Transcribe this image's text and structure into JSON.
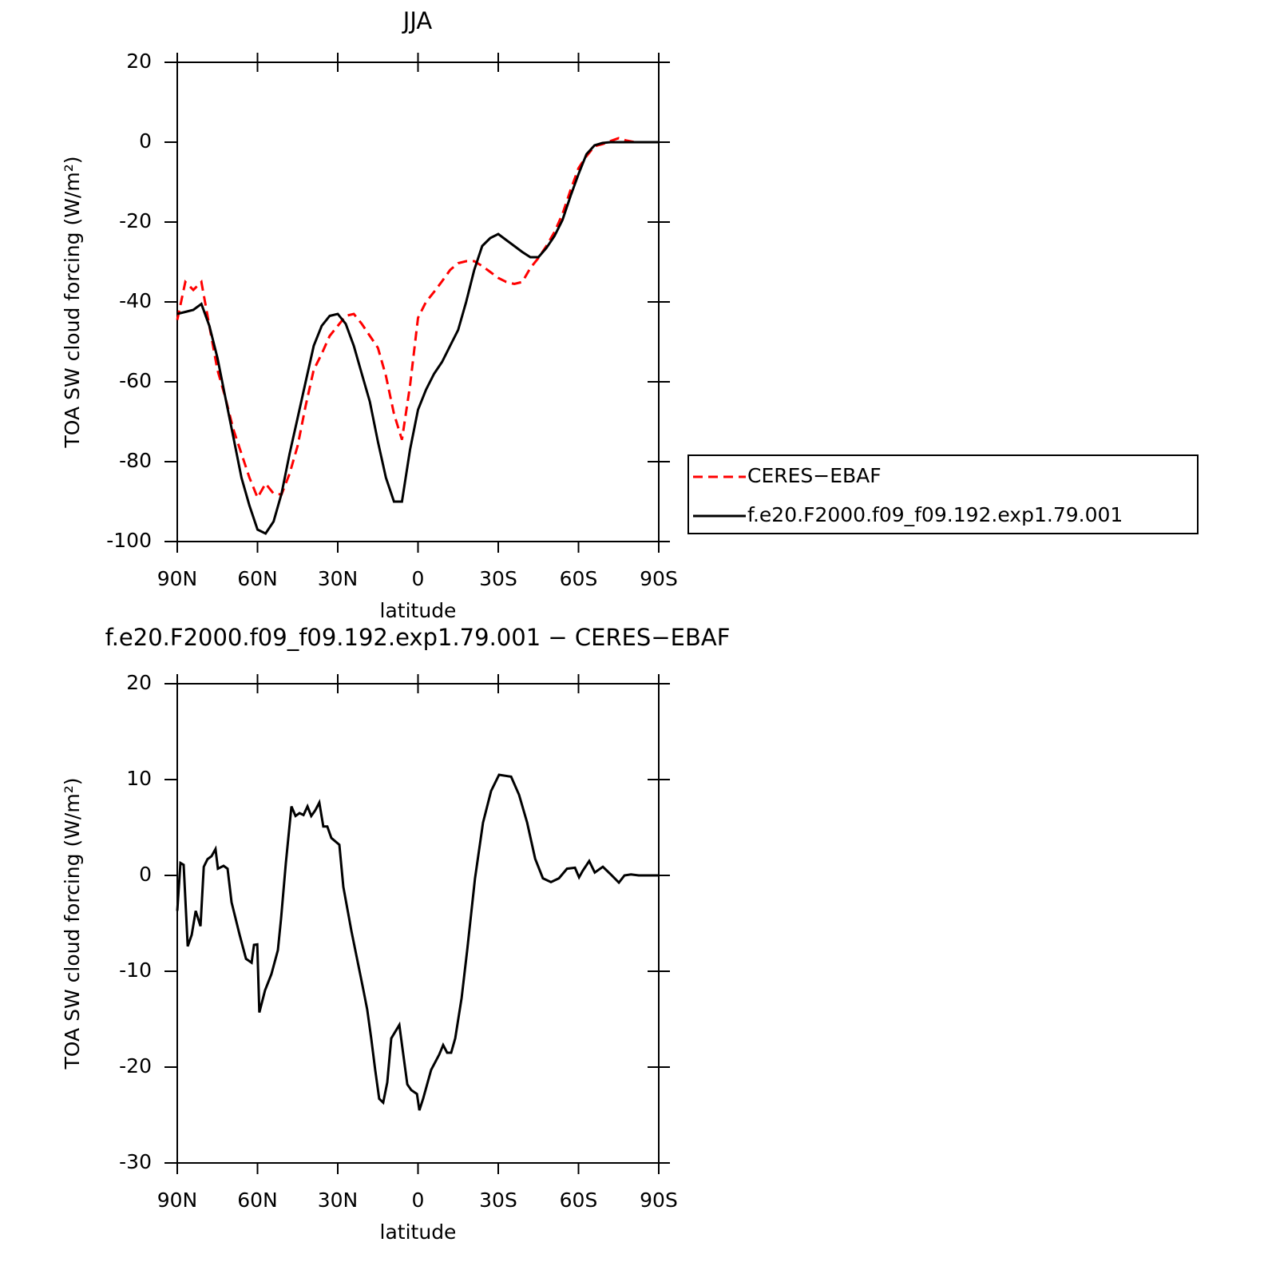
{
  "chart_data": [
    {
      "type": "line",
      "title": "JJA",
      "xlabel": "latitude",
      "ylabel": "TOA SW cloud forcing (W/m²)",
      "x": [
        90,
        87,
        84,
        81,
        78,
        75,
        72,
        69,
        66,
        63,
        60,
        57,
        54,
        51,
        48,
        45,
        42,
        39,
        36,
        33,
        30,
        27,
        24,
        21,
        18,
        15,
        12,
        9,
        6,
        3,
        0,
        -3,
        -6,
        -9,
        -12,
        -15,
        -18,
        -21,
        -24,
        -27,
        -30,
        -33,
        -36,
        -39,
        -42,
        -45,
        -48,
        -51,
        -54,
        -57,
        -60,
        -63,
        -66,
        -69,
        -72,
        -75,
        -78,
        -81,
        -84,
        -87,
        -90
      ],
      "series": [
        {
          "name": "CERES−EBAF",
          "color": "#ff0000",
          "line_style": "dashed",
          "values": [
            -44.5,
            -35,
            -37,
            -35,
            -46,
            -57,
            -64,
            -72,
            -78,
            -84,
            -89,
            -85.5,
            -88,
            -88.2,
            -83,
            -76,
            -66,
            -57,
            -53,
            -48.5,
            -46,
            -43.5,
            -43,
            -45.5,
            -48.5,
            -51.5,
            -58.5,
            -68,
            -74.5,
            -61,
            -44,
            -40,
            -37.5,
            -34.8,
            -32,
            -30.3,
            -29.8,
            -29.8,
            -31,
            -32.5,
            -34,
            -35,
            -35.5,
            -35,
            -31.5,
            -29,
            -26,
            -22.5,
            -18,
            -12,
            -6.5,
            -3.5,
            -1,
            -0.5,
            0.3,
            1,
            0.4,
            0,
            0,
            0,
            0
          ]
        },
        {
          "name": "f.e20.F2000.f09_f09.192.exp1.79.001",
          "color": "#000000",
          "line_style": "solid",
          "values": [
            -43,
            -42.5,
            -42,
            -40.5,
            -46,
            -54,
            -64,
            -74,
            -84,
            -91,
            -97,
            -98,
            -95,
            -88,
            -78,
            -69,
            -60,
            -51,
            -46,
            -43.5,
            -43,
            -45.5,
            -51,
            -58,
            -65,
            -75,
            -84,
            -90,
            -90,
            -77,
            -67,
            -62,
            -58,
            -55,
            -51,
            -47,
            -40,
            -32,
            -26,
            -24,
            -23,
            -24.5,
            -26,
            -27.5,
            -28.8,
            -28.8,
            -26.5,
            -23.5,
            -19.5,
            -13.5,
            -8,
            -3,
            -0.8,
            -0.2,
            0,
            0,
            0,
            0,
            0,
            0,
            0
          ]
        }
      ],
      "xlim": [
        90,
        -90
      ],
      "xticks": [
        {
          "value": 90,
          "label": "90N"
        },
        {
          "value": 60,
          "label": "60N"
        },
        {
          "value": 30,
          "label": "30N"
        },
        0,
        {
          "value": -30,
          "label": "30S"
        },
        {
          "value": -60,
          "label": "60S"
        },
        {
          "value": -90,
          "label": "90S"
        }
      ],
      "ylim": [
        -100,
        20
      ],
      "yticks": [
        -100,
        -80,
        -60,
        -40,
        -20,
        0,
        20
      ],
      "legend": "right"
    },
    {
      "type": "line",
      "title": "f.e20.F2000.f09_f09.192.exp1.79.001 − CERES−EBAF",
      "xlabel": "latitude",
      "ylabel": "TOA SW cloud forcing (W/m²)",
      "x": [
        90,
        88.8,
        87.6,
        86.1,
        84.6,
        83.1,
        81.3,
        80.1,
        78.7,
        77.2,
        75.7,
        74.8,
        72.7,
        71.2,
        69.7,
        66.7,
        64.3,
        62.2,
        61.3,
        60.1,
        59.3,
        57.2,
        54.8,
        52.4,
        51.2,
        49.4,
        47.3,
        45.8,
        44.3,
        42.8,
        41.3,
        39.9,
        38.4,
        36.9,
        35.4,
        33.9,
        32.4,
        29.4,
        27.9,
        24.9,
        21.9,
        20.4,
        19,
        17.5,
        16,
        14.5,
        13,
        11.5,
        10,
        7,
        5.5,
        4,
        2.5,
        0.4,
        -0.5,
        -1.9,
        -4.9,
        -7.9,
        -9.4,
        -10.9,
        -12.4,
        -13.9,
        -16.3,
        -18.4,
        -21.3,
        -24.3,
        -27.3,
        -30.3,
        -34.8,
        -37.8,
        -40.8,
        -43.8,
        -46.7,
        -49.7,
        -52.7,
        -55.7,
        -58.7,
        -60.2,
        -61.6,
        -64,
        -66.1,
        -69.1,
        -72.1,
        -75.1,
        -77.2,
        -79.6,
        -82.5,
        -90
      ],
      "series": [
        {
          "color": "#000000",
          "line_style": "solid",
          "values": [
            -3.7,
            1.3,
            1.1,
            -7.4,
            -6.2,
            -3.7,
            -5.3,
            0.9,
            1.7,
            2,
            2.75,
            0.7,
            1,
            0.7,
            -2.8,
            -6.2,
            -8.7,
            -9.1,
            -7.25,
            -7.2,
            -14.3,
            -12,
            -10.3,
            -7.8,
            -4.5,
            1.3,
            7.2,
            6.2,
            6.5,
            6.3,
            7.2,
            6.2,
            6.8,
            7.6,
            5.1,
            5.1,
            3.9,
            3.2,
            -1.2,
            -5.8,
            -9.9,
            -12,
            -14,
            -17,
            -20.3,
            -23.3,
            -23.7,
            -21.6,
            -17,
            -15.6,
            -18.7,
            -21.8,
            -22.4,
            -22.8,
            -24.5,
            -23.3,
            -20.3,
            -18.7,
            -17.7,
            -18.5,
            -18.5,
            -17,
            -12.8,
            -7.8,
            -0.3,
            5.5,
            8.8,
            10.5,
            10.3,
            8.4,
            5.5,
            1.75,
            -0.3,
            -0.7,
            -0.3,
            0.7,
            0.8,
            -0.2,
            0.5,
            1.5,
            0.3,
            0.9,
            0.1,
            -0.75,
            0,
            0.1,
            0,
            0
          ]
        }
      ],
      "xlim": [
        90,
        -90
      ],
      "xticks": [
        {
          "value": 90,
          "label": "90N"
        },
        {
          "value": 60,
          "label": "60N"
        },
        {
          "value": 30,
          "label": "30N"
        },
        0,
        {
          "value": -30,
          "label": "30S"
        },
        {
          "value": -60,
          "label": "60S"
        },
        {
          "value": -90,
          "label": "90S"
        }
      ],
      "ylim": [
        -30,
        20
      ],
      "yticks": [
        -30,
        -20,
        -10,
        0,
        10,
        20
      ]
    }
  ]
}
